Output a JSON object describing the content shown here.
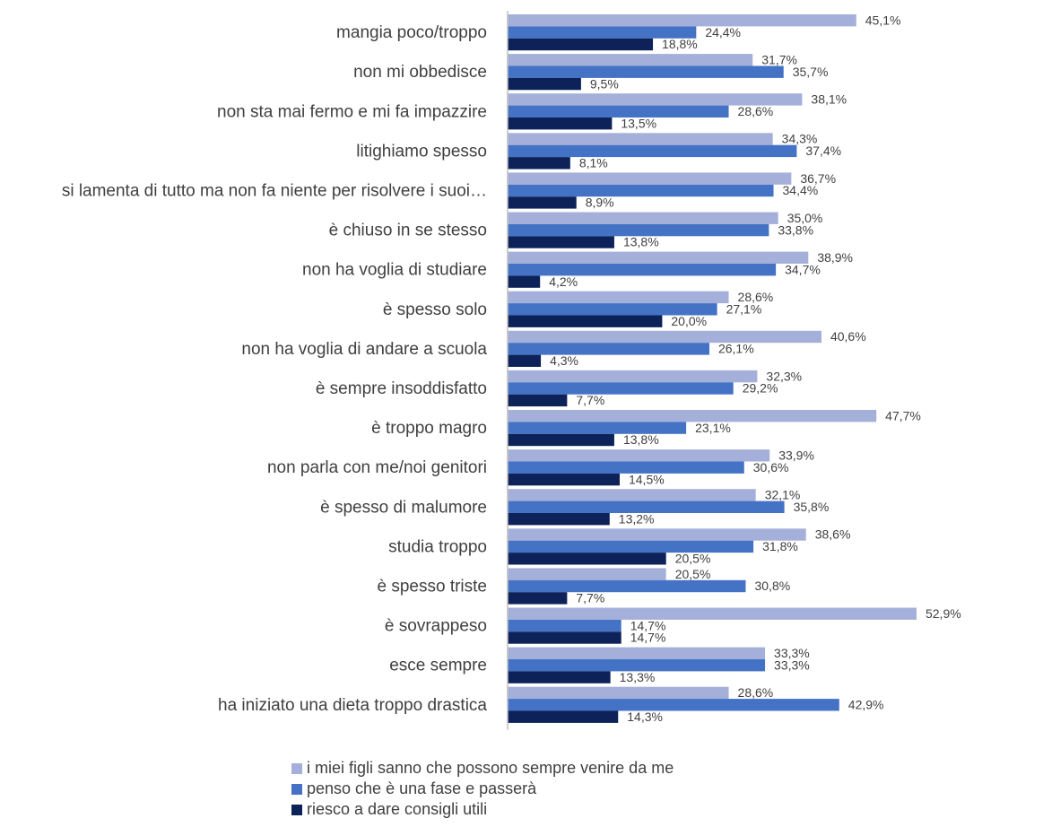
{
  "chart_data": {
    "type": "bar",
    "orientation": "horizontal",
    "categories": [
      "mangia poco/troppo",
      "non mi obbedisce",
      "non sta mai fermo e mi fa impazzire",
      "litighiamo spesso",
      "si lamenta di tutto ma non fa niente per risolvere i suoi…",
      "è chiuso in se stesso",
      "non ha voglia di studiare",
      "è spesso solo",
      "non ha voglia di andare a scuola",
      "è sempre insoddisfatto",
      "è troppo magro",
      "non parla con me/noi genitori",
      "è spesso di malumore",
      "studia troppo",
      "è spesso triste",
      "è sovrappeso",
      "esce sempre",
      "ha iniziato una dieta troppo drastica"
    ],
    "series": [
      {
        "name": "i miei figli sanno che possono sempre venire da me",
        "color": "#A5B0DA",
        "values": [
          45.1,
          31.7,
          38.1,
          34.3,
          36.7,
          35.0,
          38.9,
          28.6,
          40.6,
          32.3,
          47.7,
          33.9,
          32.1,
          38.6,
          20.5,
          52.9,
          33.3,
          28.6
        ],
        "labels": [
          "45,1%",
          "31,7%",
          "38,1%",
          "34,3%",
          "36,7%",
          "35,0%",
          "38,9%",
          "28,6%",
          "40,6%",
          "32,3%",
          "47,7%",
          "33,9%",
          "32,1%",
          "38,6%",
          "20,5%",
          "52,9%",
          "33,3%",
          "28,6%"
        ]
      },
      {
        "name": "penso che è una fase e passerà",
        "color": "#4472C4",
        "values": [
          24.4,
          35.7,
          28.6,
          37.4,
          34.4,
          33.8,
          34.7,
          27.1,
          26.1,
          29.2,
          23.1,
          30.6,
          35.8,
          31.8,
          30.8,
          14.7,
          33.3,
          42.9
        ],
        "labels": [
          "24,4%",
          "35,7%",
          "28,6%",
          "37,4%",
          "34,4%",
          "33,8%",
          "34,7%",
          "27,1%",
          "26,1%",
          "29,2%",
          "23,1%",
          "30,6%",
          "35,8%",
          "31,8%",
          "30,8%",
          "14,7%",
          "33,3%",
          "42,9%"
        ]
      },
      {
        "name": "riesco a dare consigli utili",
        "color": "#0D2259",
        "values": [
          18.8,
          9.5,
          13.5,
          8.1,
          8.9,
          13.8,
          4.2,
          20.0,
          4.3,
          7.7,
          13.8,
          14.5,
          13.2,
          20.5,
          7.7,
          14.7,
          13.3,
          14.3
        ],
        "labels": [
          "18,8%",
          "9,5%",
          "13,5%",
          "8,1%",
          "8,9%",
          "13,8%",
          "4,2%",
          "20,0%",
          "4,3%",
          "7,7%",
          "13,8%",
          "14,5%",
          "13,2%",
          "20,5%",
          "7,7%",
          "14,7%",
          "13,3%",
          "14,3%"
        ]
      }
    ],
    "xlim": [
      0,
      60
    ],
    "grid": false,
    "legend_position": "bottom",
    "axis_color": "#BFBFBF"
  }
}
